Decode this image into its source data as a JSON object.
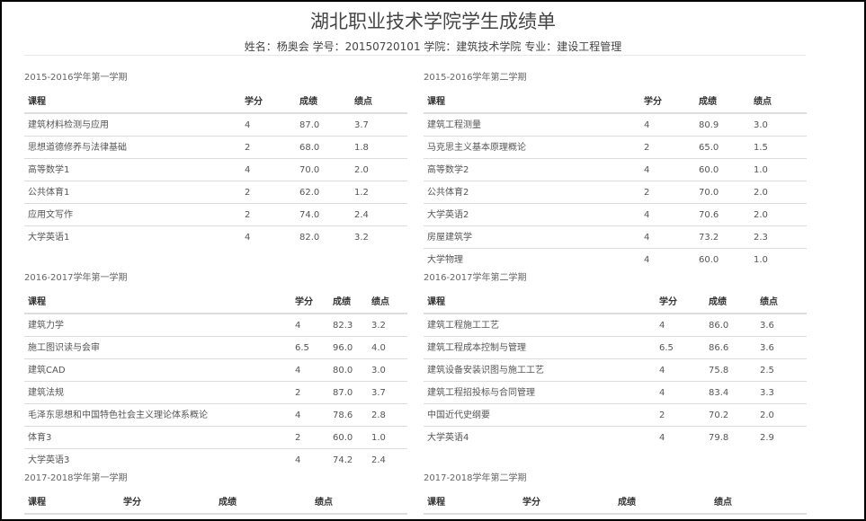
{
  "header": {
    "title": "湖北职业技术学院学生成绩单",
    "subtitle": "姓名：杨奥会 学号：20150720101 学院：建筑技术学院 专业：建设工程管理"
  },
  "columns": [
    "课程",
    "学分",
    "成绩",
    "绩点"
  ],
  "semesters": [
    {
      "name": "2015-2016学年第一学期",
      "rows": [
        [
          "建筑材料检测与应用",
          "4",
          "87.0",
          "3.7"
        ],
        [
          "思想道德修养与法律基础",
          "2",
          "68.0",
          "1.8"
        ],
        [
          "高等数学1",
          "4",
          "70.0",
          "2.0"
        ],
        [
          "公共体育1",
          "2",
          "62.0",
          "1.2"
        ],
        [
          "应用文写作",
          "2",
          "74.0",
          "2.4"
        ],
        [
          "大学英语1",
          "4",
          "82.0",
          "3.2"
        ]
      ]
    },
    {
      "name": "2015-2016学年第二学期",
      "rows": [
        [
          "建筑工程测量",
          "4",
          "80.9",
          "3.0"
        ],
        [
          "马克思主义基本原理概论",
          "2",
          "65.0",
          "1.5"
        ],
        [
          "高等数学2",
          "4",
          "60.0",
          "1.0"
        ],
        [
          "公共体育2",
          "2",
          "70.0",
          "2.0"
        ],
        [
          "大学英语2",
          "4",
          "70.6",
          "2.0"
        ],
        [
          "房屋建筑学",
          "4",
          "73.2",
          "2.3"
        ],
        [
          "大学物理",
          "4",
          "60.0",
          "1.0"
        ]
      ]
    },
    {
      "name": "2016-2017学年第一学期",
      "rows": [
        [
          "建筑力学",
          "4",
          "82.3",
          "3.2"
        ],
        [
          "施工图识读与会审",
          "6.5",
          "96.0",
          "4.0"
        ],
        [
          "建筑CAD",
          "4",
          "80.0",
          "3.0"
        ],
        [
          "建筑法规",
          "2",
          "87.0",
          "3.7"
        ],
        [
          "毛泽东思想和中国特色社会主义理论体系概论",
          "4",
          "78.6",
          "2.8"
        ],
        [
          "体育3",
          "2",
          "60.0",
          "1.0"
        ],
        [
          "大学英语3",
          "4",
          "74.2",
          "2.4"
        ]
      ]
    },
    {
      "name": "2016-2017学年第二学期",
      "rows": [
        [
          "建筑工程施工工艺",
          "4",
          "86.0",
          "3.6"
        ],
        [
          "建筑工程成本控制与管理",
          "6.5",
          "86.6",
          "3.6"
        ],
        [
          "建筑设备安装识图与施工工艺",
          "4",
          "75.8",
          "2.5"
        ],
        [
          "建筑工程招投标与合同管理",
          "4",
          "83.4",
          "3.3"
        ],
        [
          "中国近代史纲要",
          "2",
          "70.2",
          "2.0"
        ],
        [
          "大学英语4",
          "4",
          "79.8",
          "2.9"
        ]
      ]
    },
    {
      "name": "2017-2018学年第一学期",
      "rows": []
    },
    {
      "name": "2017-2018学年第二学期",
      "rows": []
    }
  ]
}
